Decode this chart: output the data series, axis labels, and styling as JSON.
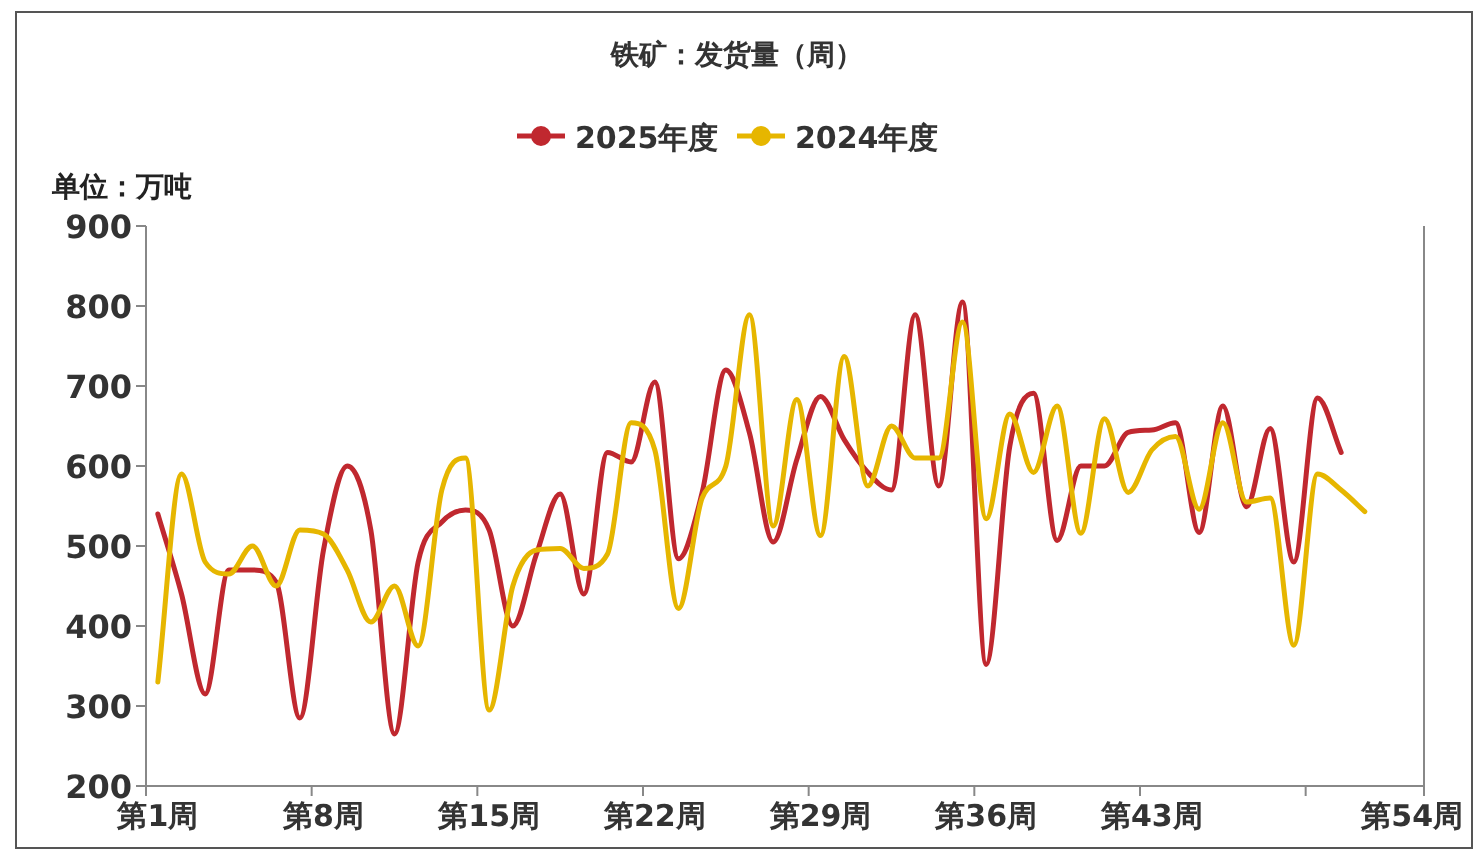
{
  "chart_data": {
    "type": "line",
    "title": "铁矿：发货量（周）",
    "ylabel": "单位：万吨",
    "categories": [
      "第1周",
      null,
      null,
      null,
      null,
      null,
      null,
      "第8周",
      null,
      null,
      null,
      null,
      null,
      null,
      "第15周",
      null,
      null,
      null,
      null,
      null,
      null,
      "第22周",
      null,
      null,
      null,
      null,
      null,
      null,
      "第29周",
      null,
      null,
      null,
      null,
      null,
      null,
      "第36周",
      null,
      null,
      null,
      null,
      null,
      null,
      "第43周",
      null,
      null,
      null,
      null,
      null,
      null,
      null,
      null,
      null,
      null,
      "第54周"
    ],
    "series": [
      {
        "name": "2025年度",
        "color": "#c0282f",
        "values": [
          540,
          440,
          315,
          470,
          470,
          455,
          285,
          495,
          600,
          520,
          265,
          480,
          530,
          545,
          520,
          400,
          490,
          565,
          440,
          617,
          605,
          705,
          484,
          567,
          720,
          641,
          505,
          608,
          687,
          633,
          592,
          570,
          789,
          575,
          805,
          352,
          625,
          691,
          507,
          600,
          600,
          642,
          645,
          654,
          517,
          675,
          549,
          647,
          480,
          685,
          617,
          null,
          null,
          null
        ]
      },
      {
        "name": "2024年度",
        "color": "#e6b600",
        "values": [
          330,
          590,
          480,
          465,
          500,
          450,
          520,
          515,
          470,
          405,
          450,
          375,
          570,
          610,
          295,
          450,
          495,
          497,
          472,
          490,
          654,
          620,
          422,
          560,
          600,
          789,
          525,
          683,
          513,
          737,
          575,
          650,
          610,
          610,
          780,
          534,
          665,
          592,
          675,
          516,
          659,
          567,
          620,
          637,
          546,
          654,
          555,
          560,
          376,
          590,
          570,
          543,
          null,
          null
        ]
      }
    ],
    "ylim": [
      200,
      900
    ],
    "yticks": [
      200,
      300,
      400,
      500,
      600,
      700,
      800,
      900
    ],
    "grid": false,
    "legend": "top",
    "line_style": "solid"
  }
}
